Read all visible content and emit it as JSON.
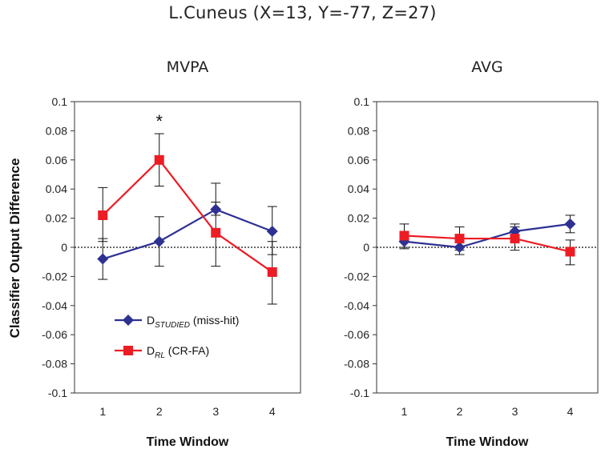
{
  "figure_title": "L.Cuneus (X=13, Y=-77, Z=27)",
  "ylabel": "Classifier Output Difference",
  "chart_data": [
    {
      "type": "line",
      "title": "MVPA",
      "xlabel": "Time Window",
      "ylabel": "Classifier Output Difference",
      "categories": [
        "1",
        "2",
        "3",
        "4"
      ],
      "ylim": [
        -0.1,
        0.1
      ],
      "yticks": [
        0.1,
        0.08,
        0.06,
        0.04,
        0.02,
        0,
        -0.02,
        -0.04,
        -0.06,
        -0.08,
        -0.1
      ],
      "ytick_labels": [
        "0.1",
        "0.08",
        "0.06",
        "0.04",
        "0.02",
        "0",
        "-0.02",
        "-0.04",
        "-0.06",
        "-0.08",
        "-0.1"
      ],
      "zero_line": "dotted",
      "annotations": [
        {
          "text": "*",
          "category": "2"
        }
      ],
      "series": [
        {
          "name": "D_STUDIED (miss-hit)",
          "color": "#2e3192",
          "marker": "diamond",
          "values": [
            -0.008,
            0.004,
            0.026,
            0.011
          ],
          "err_upper": [
            0.006,
            0.021,
            0.031,
            0.028
          ],
          "err_lower": [
            -0.022,
            -0.013,
            0.022,
            -0.005
          ]
        },
        {
          "name": "D_RL (CR-FA)",
          "color": "#ed1c24",
          "marker": "square",
          "values": [
            0.022,
            0.06,
            0.01,
            -0.017
          ],
          "err_upper": [
            0.041,
            0.078,
            0.044,
            0.004
          ],
          "err_lower": [
            0.004,
            0.042,
            -0.013,
            -0.039
          ]
        }
      ],
      "legend": [
        {
          "main": "D",
          "sub": "STUDIED",
          "rest": " (miss-hit)",
          "color": "#2e3192",
          "marker": "diamond"
        },
        {
          "main": "D",
          "sub": "RL",
          "rest": " (CR-FA)",
          "color": "#ed1c24",
          "marker": "square"
        }
      ]
    },
    {
      "type": "line",
      "title": "AVG",
      "xlabel": "Time Window",
      "categories": [
        "1",
        "2",
        "3",
        "4"
      ],
      "ylim": [
        -0.1,
        0.1
      ],
      "yticks": [
        0.1,
        0.08,
        0.06,
        0.04,
        0.02,
        0,
        -0.02,
        -0.04,
        -0.06,
        -0.08,
        -0.1
      ],
      "ytick_labels": [
        "0.1",
        "0.08",
        "0.06",
        "0.04",
        "0.02",
        "0",
        "-0.02",
        "-0.04",
        "-0.06",
        "-0.08",
        "-0.1"
      ],
      "zero_line": "dotted",
      "series": [
        {
          "name": "D_STUDIED (miss-hit)",
          "color": "#2e3192",
          "marker": "diamond",
          "values": [
            0.004,
            0.0,
            0.011,
            0.016
          ],
          "err_upper": [
            0.009,
            0.004,
            0.016,
            0.022
          ],
          "err_lower": [
            -0.001,
            -0.005,
            0.006,
            0.01
          ]
        },
        {
          "name": "D_RL (CR-FA)",
          "color": "#ed1c24",
          "marker": "square",
          "values": [
            0.008,
            0.006,
            0.006,
            -0.003
          ],
          "err_upper": [
            0.016,
            0.014,
            0.014,
            0.005
          ],
          "err_lower": [
            0.0,
            -0.002,
            -0.002,
            -0.012
          ]
        }
      ]
    }
  ]
}
